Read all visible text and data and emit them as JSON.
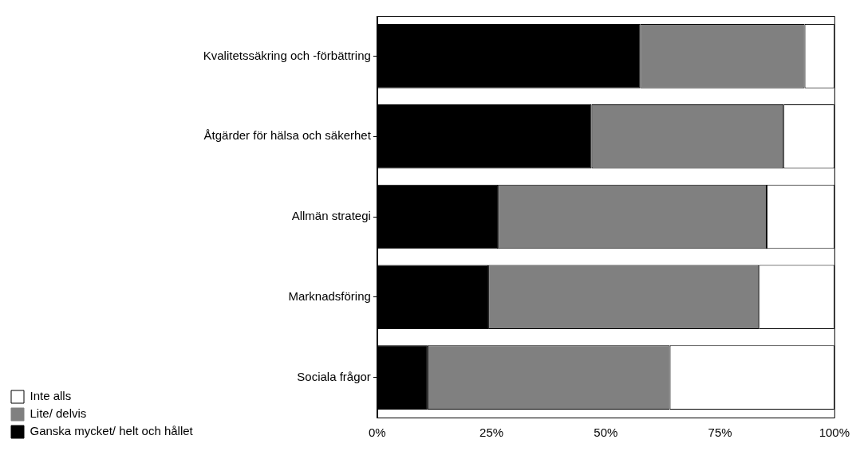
{
  "chart_data": {
    "type": "bar",
    "orientation": "horizontal",
    "stacked": true,
    "categories": [
      "Kvalitetssäkring och -förbättring",
      "Åtgärder för hälsa och säkerhet",
      "Allmän strategi",
      "Marknadsföring",
      "Sociala frågor"
    ],
    "series": [
      {
        "name": "Ganska mycket/ helt och hållet",
        "color": "#000000",
        "values": [
          57.5,
          46.9,
          26.4,
          24.3,
          11
        ]
      },
      {
        "name": "Lite/ delvis",
        "color": "#808080",
        "values": [
          36,
          42,
          58.8,
          59.2,
          53
        ]
      },
      {
        "name": "Inte alls",
        "color": "#ffffff",
        "values": [
          6.5,
          11.1,
          14.8,
          16.5,
          36
        ]
      }
    ],
    "xlim": [
      0,
      100
    ],
    "xticks": [
      {
        "value": 0,
        "label": "0%"
      },
      {
        "value": 25,
        "label": "25%"
      },
      {
        "value": 50,
        "label": "50%"
      },
      {
        "value": 75,
        "label": "75%"
      },
      {
        "value": 100,
        "label": "100%"
      }
    ],
    "grid": false,
    "legend": "bottom left"
  }
}
